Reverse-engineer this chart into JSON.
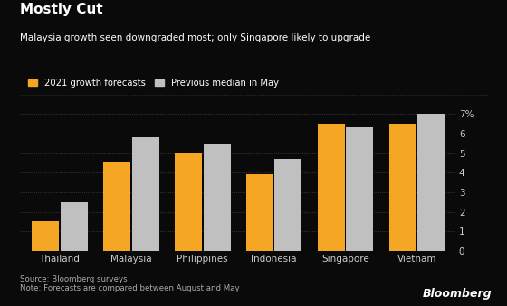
{
  "title": "Mostly Cut",
  "subtitle": "Malaysia growth seen downgraded most; only Singapore likely to upgrade",
  "categories": [
    "Thailand",
    "Malaysia",
    "Philippines",
    "Indonesia",
    "Singapore",
    "Vietnam"
  ],
  "forecast_2021": [
    1.5,
    4.5,
    5.0,
    3.9,
    6.5,
    6.5
  ],
  "prev_median_may": [
    2.5,
    5.8,
    5.5,
    4.7,
    6.3,
    7.0
  ],
  "orange_color": "#F5A623",
  "gray_color": "#C0C0C0",
  "bg_color": "#0a0a0a",
  "text_color": "#ffffff",
  "axis_text_color": "#cccccc",
  "legend_label_orange": "2021 growth forecasts",
  "legend_label_gray": "Previous median in May",
  "source_text": "Source: Bloomberg surveys\nNote: Forecasts are compared between August and May",
  "bloomberg_label": "Bloomberg",
  "ylim": [
    0,
    7.5
  ],
  "yticks": [
    0,
    1,
    2,
    3,
    4,
    5,
    6,
    7
  ],
  "ytick_labels": [
    "0",
    "1",
    "2",
    "3",
    "4",
    "5",
    "6",
    "7%"
  ]
}
